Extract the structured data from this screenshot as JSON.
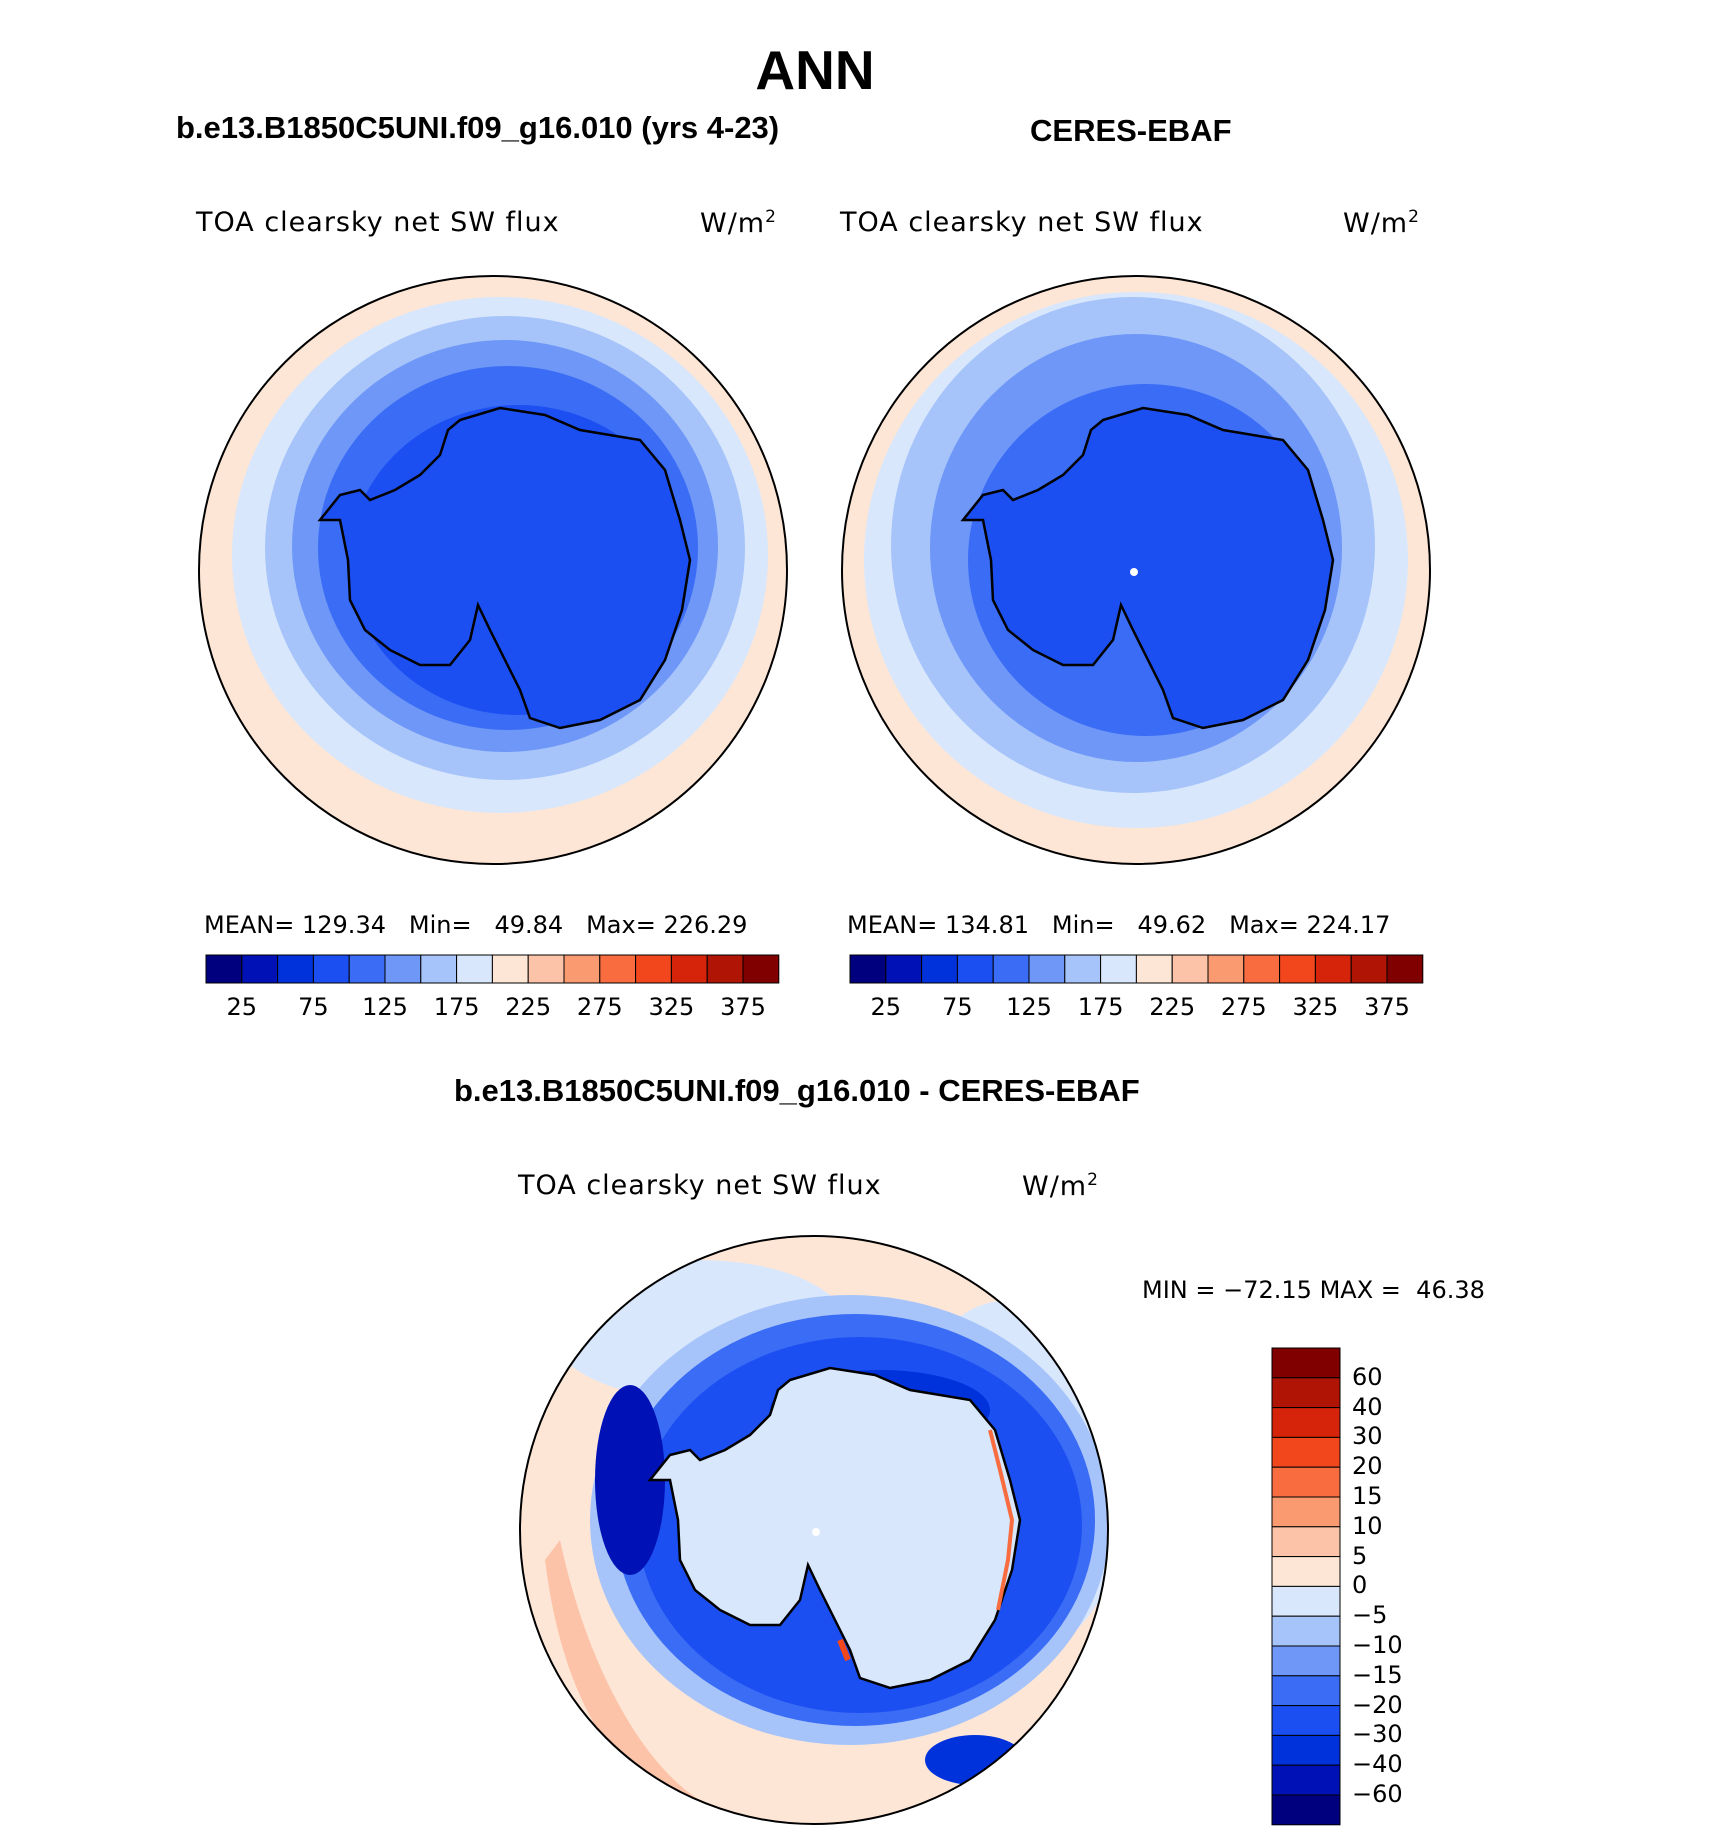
{
  "title": "ANN",
  "panels": [
    {
      "id": "model",
      "heading": "b.e13.B1850C5UNI.f09_g16.010 (yrs 4-23)",
      "variable": "TOA clearsky net SW flux",
      "units": "W/m",
      "units_exp": "2",
      "stats": {
        "mean_label": "MEAN=",
        "mean": "129.34",
        "min_label": "Min=",
        "min": "49.84",
        "max_label": "Max=",
        "max": "226.29"
      }
    },
    {
      "id": "obs",
      "heading": "CERES-EBAF",
      "variable": "TOA clearsky net SW flux",
      "units": "W/m",
      "units_exp": "2",
      "stats": {
        "mean_label": "MEAN=",
        "mean": "134.81",
        "min_label": "Min=",
        "min": "49.62",
        "max_label": "Max=",
        "max": "224.17"
      }
    }
  ],
  "abs_colorbar": {
    "colors": [
      "#00007f",
      "#0012b5",
      "#0032dc",
      "#1c4ff2",
      "#3a6cf5",
      "#6e97f7",
      "#a6c4fa",
      "#d8e7fc",
      "#fde6d6",
      "#fcc3a8",
      "#fa9a71",
      "#f86c3f",
      "#f2461c",
      "#d6240b",
      "#b01405",
      "#800000"
    ],
    "labels": [
      "25",
      "75",
      "125",
      "175",
      "225",
      "275",
      "325",
      "375"
    ]
  },
  "diff": {
    "heading": "b.e13.B1850C5UNI.f09_g16.010 - CERES-EBAF",
    "variable": "TOA clearsky net SW flux",
    "units": "W/m",
    "units_exp": "2",
    "min_label": "MIN =",
    "min": "−72.15",
    "max_label": "MAX =",
    "max": "46.38",
    "colorbar": {
      "colors": [
        "#800000",
        "#b01405",
        "#d6240b",
        "#f2461c",
        "#f86c3f",
        "#fa9a71",
        "#fcc3a8",
        "#fde6d6",
        "#d8e7fc",
        "#a6c4fa",
        "#6e97f7",
        "#3a6cf5",
        "#1c4ff2",
        "#0032dc",
        "#0012b5",
        "#00007f"
      ],
      "labels": [
        "60",
        "40",
        "30",
        "20",
        "15",
        "10",
        "5",
        "0",
        "−5",
        "−10",
        "−15",
        "−20",
        "−30",
        "−40",
        "−60"
      ]
    }
  },
  "fill_colors": {
    "land": "#1c4ff2",
    "ocean_outer": "#fde6d6",
    "antarctica_diff": "#d8e7fc"
  }
}
